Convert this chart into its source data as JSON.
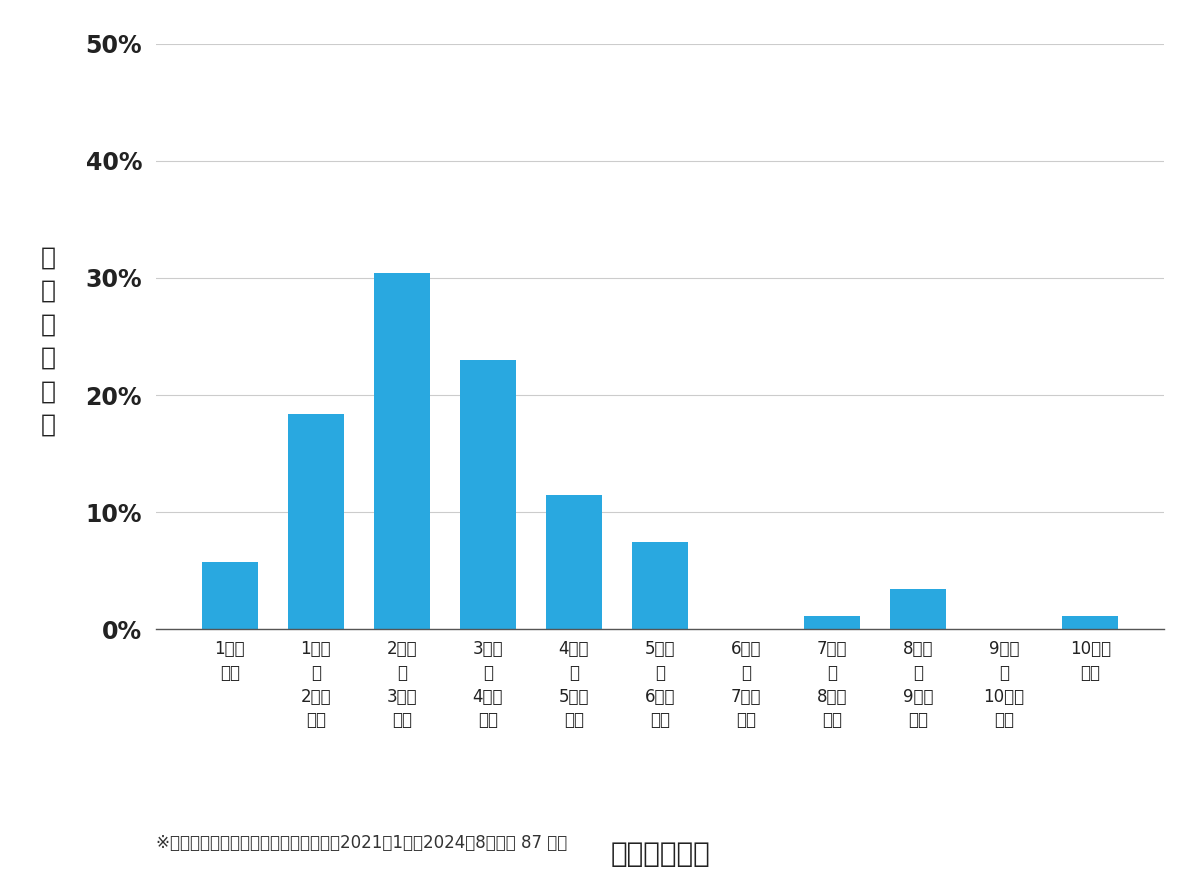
{
  "categories": [
    "1万円\n未満",
    "1万円\n〜\n2万円\n未満",
    "2万円\n〜\n3万円\n未満",
    "3万円\n〜\n4万円\n未満",
    "4万円\n〜\n5万円\n未満",
    "5万円\n〜\n6万円\n未満",
    "6万円\n〜\n7万円\n未満",
    "7万円\n〜\n8万円\n未満",
    "8万円\n〜\n9万円\n未満",
    "9万円\n〜\n10万円\n未満",
    "10万円\n以上"
  ],
  "values": [
    5.747,
    18.391,
    30.46,
    22.989,
    11.494,
    7.471,
    0.0,
    1.149,
    3.448,
    0.0,
    1.149
  ],
  "bar_color": "#29A8E0",
  "ylabel_chars": [
    "費",
    "用",
    "帯",
    "の",
    "割",
    "合"
  ],
  "xlabel": "費用帯（円）",
  "yticks": [
    0,
    10,
    20,
    30,
    40,
    50
  ],
  "ytick_labels": [
    "0%",
    "10%",
    "20%",
    "30%",
    "40%",
    "50%"
  ],
  "ylim": [
    0,
    50
  ],
  "footnote": "※弊社受付の案件を対象に集計（期間：2021年1月〜2024年8月、計 87 件）",
  "background_color": "#ffffff",
  "grid_color": "#cccccc"
}
